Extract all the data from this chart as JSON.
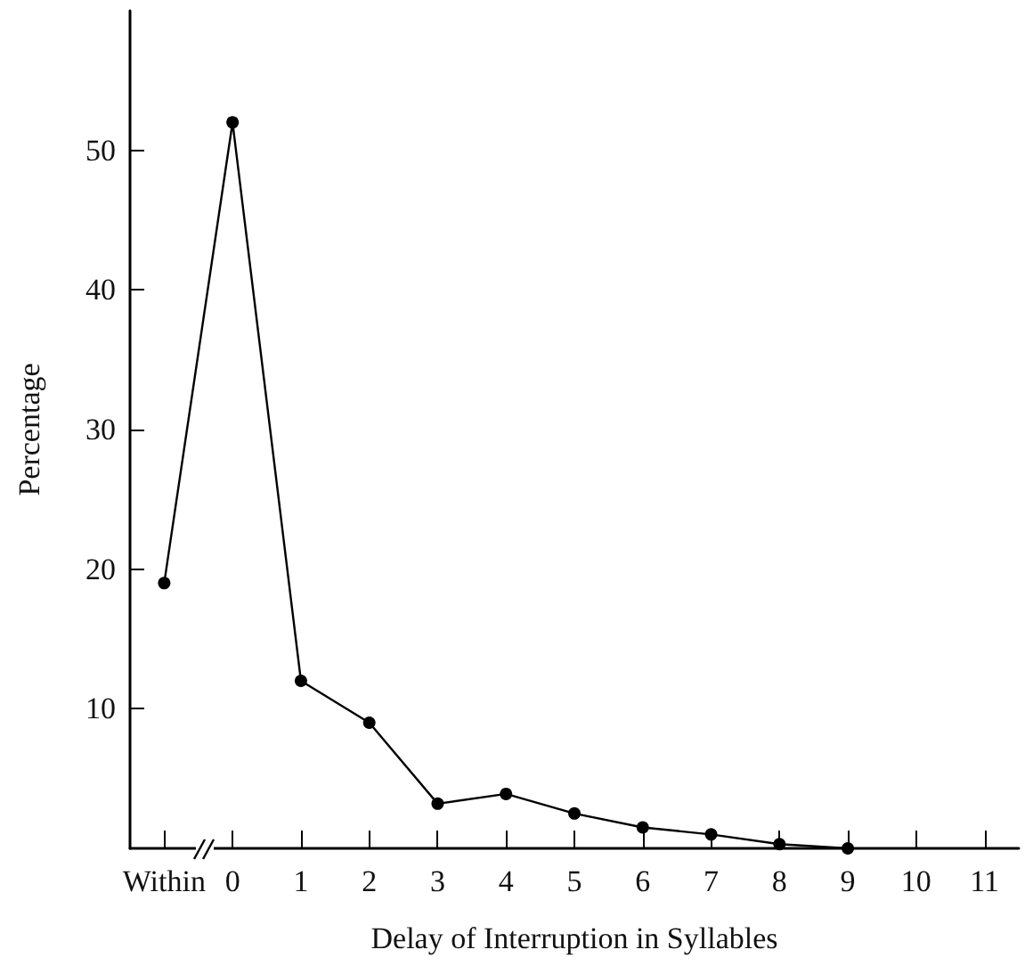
{
  "chart_data": {
    "type": "line",
    "xlabel": "Delay of Interruption in Syllables",
    "ylabel": "Percentage",
    "categories": [
      "Within",
      "0",
      "1",
      "2",
      "3",
      "4",
      "5",
      "6",
      "7",
      "8",
      "9",
      "10",
      "11"
    ],
    "series": [
      {
        "color": "#000000",
        "values": [
          19,
          52,
          12,
          9,
          3.2,
          3.9,
          2.5,
          1.5,
          1.0,
          0.3,
          0,
          null,
          null
        ]
      }
    ],
    "ylim": [
      0,
      60
    ],
    "yticks": [
      10,
      20,
      30,
      40,
      50
    ],
    "marker": "circle",
    "line_style": "solid"
  }
}
